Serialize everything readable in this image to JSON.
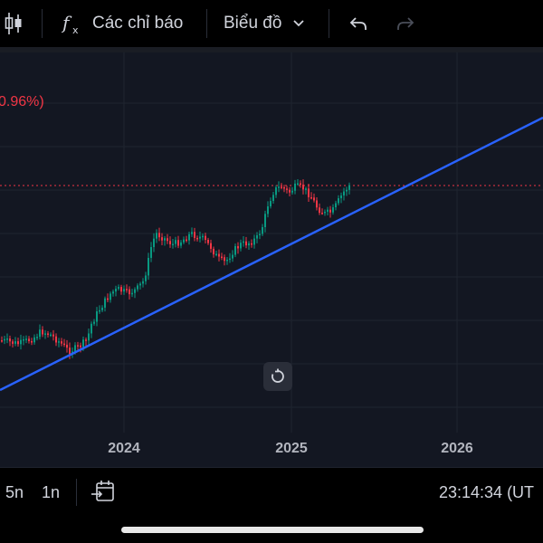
{
  "toolbar": {
    "indicators_label": "Các chỉ báo",
    "chart_type_label": "Biểu đồ"
  },
  "chart": {
    "change_label": "0.96%)",
    "up_color": "#089981",
    "down_color": "#f23645",
    "trendline_color": "#2962ff",
    "price_line_color": "#f23645",
    "background": "#131722"
  },
  "time_axis": {
    "years": [
      "2024",
      "2025",
      "2026"
    ]
  },
  "bottom_bar": {
    "range_5y": "5n",
    "range_1y": "1n",
    "clock": "23:14:34 (UT"
  }
}
